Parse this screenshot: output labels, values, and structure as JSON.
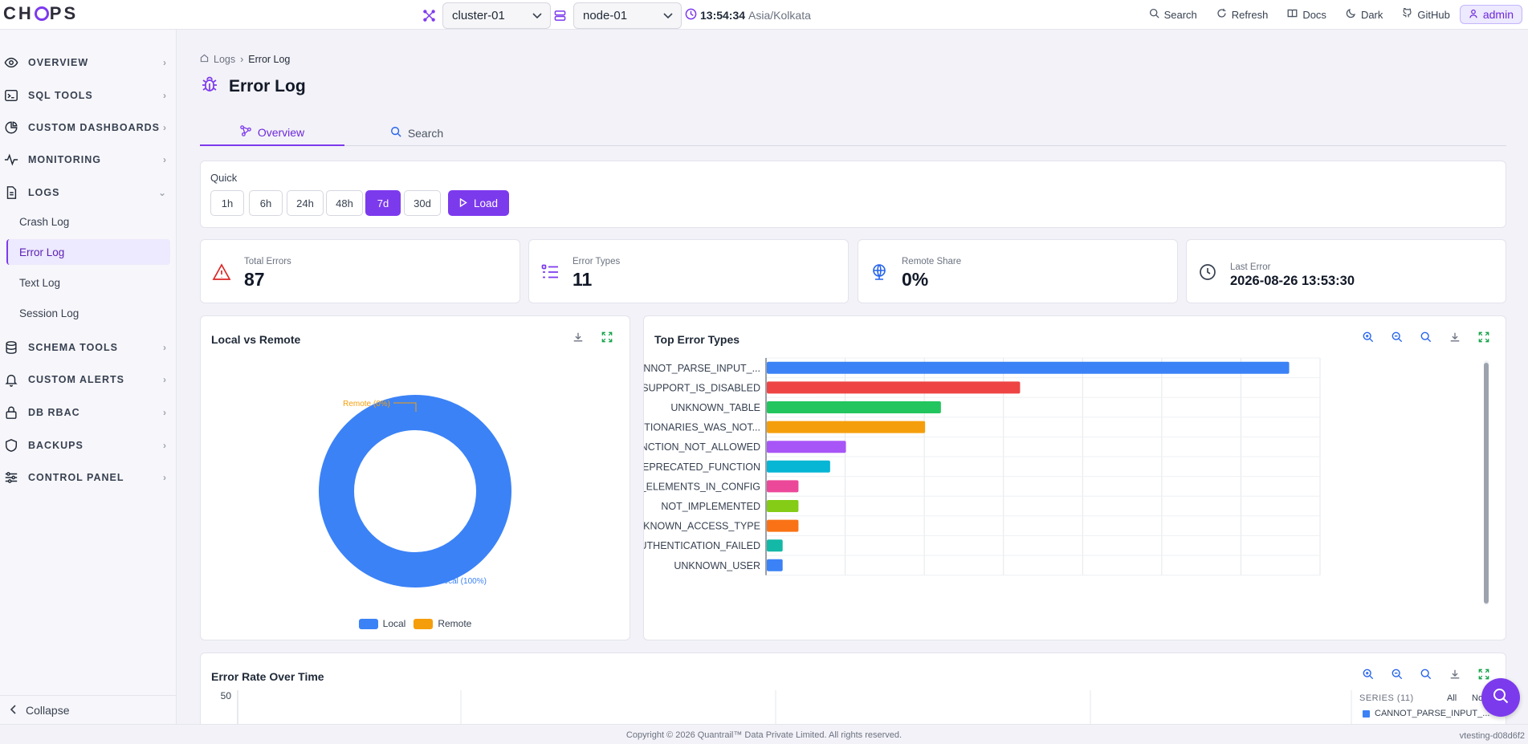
{
  "topbar": {
    "logo": "CHOPS",
    "cluster": "cluster-01",
    "node": "node-01",
    "time": "13:54:34",
    "timezone": "Asia/Kolkata",
    "links": [
      "Search",
      "Refresh",
      "Docs",
      "Dark",
      "GitHub"
    ],
    "user": "admin"
  },
  "sidebar": {
    "items": [
      {
        "label": "OVERVIEW",
        "icon": "eye-icon"
      },
      {
        "label": "SQL TOOLS",
        "icon": "terminal-icon"
      },
      {
        "label": "CUSTOM DASHBOARDS",
        "icon": "pie-icon"
      },
      {
        "label": "MONITORING",
        "icon": "pulse-icon"
      },
      {
        "label": "LOGS",
        "icon": "file-icon"
      },
      {
        "label": "SCHEMA TOOLS",
        "icon": "database-icon"
      },
      {
        "label": "CUSTOM ALERTS",
        "icon": "bell-icon"
      },
      {
        "label": "DB RBAC",
        "icon": "lock-icon"
      },
      {
        "label": "BACKUPS",
        "icon": "shield-icon"
      },
      {
        "label": "CONTROL PANEL",
        "icon": "sliders-icon"
      }
    ],
    "logs_sub": [
      "Crash Log",
      "Error Log",
      "Text Log",
      "Session Log"
    ],
    "collapse": "Collapse"
  },
  "breadcrumb": {
    "root": "Logs",
    "current": "Error Log"
  },
  "page_title": "Error Log",
  "tabs": [
    "Overview",
    "Search"
  ],
  "quick": {
    "label": "Quick",
    "ranges": [
      "1h",
      "6h",
      "24h",
      "48h",
      "7d",
      "30d"
    ],
    "selected": "7d",
    "load": "Load"
  },
  "stats": [
    {
      "label": "Total Errors",
      "value": "87"
    },
    {
      "label": "Error Types",
      "value": "11"
    },
    {
      "label": "Remote Share",
      "value": "0%"
    },
    {
      "label": "Last Error",
      "value": "2026-08-26 13:53:30"
    }
  ],
  "colors": {
    "accent": "#7c3aed",
    "local": "#3b82f6",
    "remote": "#f59e0b"
  },
  "donut": {
    "title": "Local vs Remote",
    "remote_label": "Remote (0%)",
    "local_label": "Local (100%)",
    "legend": [
      "Local",
      "Remote"
    ]
  },
  "bars_title": "Top Error Types",
  "rate_title": "Error Rate Over Time",
  "rate_ytick": "50",
  "series_panel": {
    "header": "SERIES (11)",
    "all": "All",
    "none": "None",
    "first": "CANNOT_PARSE_INPUT_..."
  },
  "chart_data": [
    {
      "type": "pie",
      "title": "Local vs Remote",
      "categories": [
        "Local",
        "Remote"
      ],
      "values": [
        100,
        0
      ]
    },
    {
      "type": "bar",
      "orientation": "horizontal",
      "title": "Top Error Types",
      "categories": [
        "CANNOT_PARSE_INPUT_...",
        "SUPPORT_IS_DISABLED",
        "UNKNOWN_TABLE",
        "DICTIONARIES_WAS_NOT...",
        "FUNCTION_NOT_ALLOWED",
        "DEPRECATED_FUNCTION",
        "NO_ELEMENTS_IN_CONFIG",
        "NOT_IMPLEMENTED",
        "UNKNOWN_ACCESS_TYPE",
        "AUTHENTICATION_FAILED",
        "UNKNOWN_USER"
      ],
      "values": [
        33,
        16,
        11,
        10,
        5,
        4,
        2,
        2,
        2,
        1,
        1
      ],
      "colors": [
        "#3b82f6",
        "#ef4444",
        "#22c55e",
        "#f59e0b",
        "#a855f7",
        "#06b6d4",
        "#ec4899",
        "#84cc16",
        "#f97316",
        "#14b8a6",
        "#3b82f6"
      ],
      "xlim": [
        0,
        35
      ],
      "grid": true
    }
  ],
  "footer": {
    "copyright": "Copyright © 2026 Quantrail™ Data Private Limited. All rights reserved.",
    "version": "vtesting-d08d6f2"
  }
}
